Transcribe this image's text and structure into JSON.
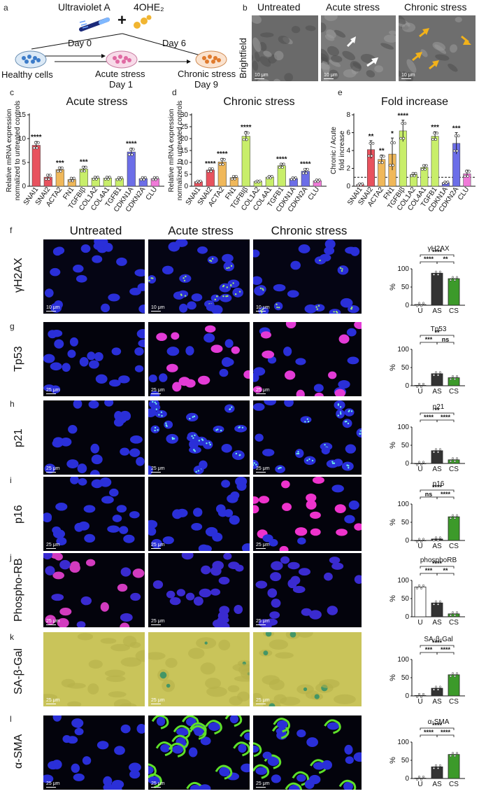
{
  "panel_letters": [
    "a",
    "b",
    "c",
    "d",
    "e",
    "f",
    "g",
    "h",
    "i",
    "j",
    "k",
    "l"
  ],
  "schematic": {
    "agent1": "Ultraviolet A",
    "plus": "+",
    "agent2": "4OHE₂",
    "day0": "Day 0",
    "day6": "Day 6",
    "healthy": "Healthy cells",
    "acute": "Acute stress",
    "acute_day": "Day 1",
    "chronic": "Chronic stress",
    "chronic_day": "Day 9"
  },
  "brightfield": {
    "row_label": "Brightfield",
    "cols": [
      "Untreated",
      "Acute stress",
      "Chronic stress"
    ],
    "scale": "10 μm"
  },
  "columns": [
    "Untreated",
    "Acute stress",
    "Chronic stress"
  ],
  "rows": [
    {
      "label": "γH2AX",
      "scale": "10 μm",
      "bg": "#050514",
      "nuc": "#2a2fd8",
      "hi": "#9fe870"
    },
    {
      "label": "Tp53",
      "scale": "25 μm",
      "bg": "#03030c",
      "nuc": "#2a2fd8",
      "hi": "#e33bd6"
    },
    {
      "label": "p21",
      "scale": "25 μm",
      "bg": "#03030c",
      "nuc": "#2a2fd8",
      "hi": "#6ff0e8"
    },
    {
      "label": "p16",
      "scale": "25 μm",
      "bg": "#03030c",
      "nuc": "#2a2fd8",
      "hi": "#ee33cc"
    },
    {
      "label": "Phospho-RB",
      "scale": "25 μm",
      "bg": "#03030c",
      "nuc": "#3a2bd0",
      "hi": "#d23bbf"
    },
    {
      "label": "SA-β-Gal",
      "scale": "25 μm",
      "bg": "#c9c45a",
      "nuc": "#b5b04a",
      "hi": "#2f8f6a"
    },
    {
      "label": "α-SMA",
      "scale": "25 μm",
      "bg": "#03030c",
      "nuc": "#2a2fd8",
      "hi": "#5ee02a"
    }
  ],
  "chart_data": [
    {
      "type": "bar",
      "title": "Acute stress",
      "ylabel": "Relative mRNA expression normalized to untreated controls",
      "ylim": [
        0,
        15
      ],
      "yticks": [
        0,
        5,
        10,
        15
      ],
      "categories": [
        "SNAI1",
        "SNAI2",
        "ACTA2",
        "FN1",
        "TGFBIβ",
        "COL1A2",
        "COL4A1",
        "TGFB1",
        "CDKN1A",
        "CDKN2A",
        "CLU"
      ],
      "values": [
        8.6,
        1.9,
        3.5,
        1.4,
        3.6,
        1.7,
        1.7,
        1.6,
        7.2,
        1.6,
        1.6
      ],
      "errors": [
        0.8,
        0.6,
        0.5,
        0.4,
        0.6,
        0.3,
        0.3,
        0.3,
        0.8,
        0.3,
        0.3
      ],
      "significance": [
        "****",
        "",
        "***",
        "",
        "***",
        "",
        "",
        "",
        "****",
        "",
        ""
      ],
      "colors": [
        "#e8525e",
        "#e8525e",
        "#f0b85a",
        "#f0b85a",
        "#c8ee6a",
        "#c8ee6a",
        "#c8ee6a",
        "#c8ee6a",
        "#6c6ee8",
        "#6c6ee8",
        "#f07ad8"
      ]
    },
    {
      "type": "bar",
      "title": "Chronic stress",
      "ylabel": "Relative mRNA expression normalized to untreated controls",
      "ylim": [
        0,
        30
      ],
      "yticks": [
        0,
        5,
        10,
        15,
        20,
        25,
        30
      ],
      "categories": [
        "SNAI1",
        "SNAI2",
        "ACTA2",
        "FN1",
        "TGFBIβ",
        "COL1A2",
        "COL4A1",
        "TGFB1",
        "CDKN1A",
        "CDKN2A",
        "CLU"
      ],
      "values": [
        1.9,
        6.8,
        10.2,
        3.6,
        21.0,
        2.0,
        3.8,
        8.6,
        3.2,
        6.3,
        2.3
      ],
      "errors": [
        0.4,
        0.8,
        1.5,
        0.8,
        2.0,
        0.3,
        0.5,
        1.0,
        0.5,
        1.2,
        0.5
      ],
      "significance": [
        "",
        "****",
        "****",
        "",
        "****",
        "",
        "",
        "****",
        "",
        "****",
        ""
      ],
      "colors": [
        "#e8525e",
        "#e8525e",
        "#f0b85a",
        "#f0b85a",
        "#c8ee6a",
        "#c8ee6a",
        "#c8ee6a",
        "#c8ee6a",
        "#6c6ee8",
        "#6c6ee8",
        "#f07ad8"
      ]
    },
    {
      "type": "bar",
      "title": "Fold increase",
      "ylabel": "Chronic / Acute fold increase",
      "ylim": [
        0,
        8
      ],
      "yticks": [
        0,
        2,
        4,
        6,
        8
      ],
      "reference_line": 1,
      "categories": [
        "SNAI1",
        "SNAI2",
        "ACTA2",
        "FN1",
        "TGFBIβ",
        "COL1A2",
        "COL4A1",
        "TGFB1",
        "CDKN1A",
        "CDKN2A",
        "CLU"
      ],
      "values": [
        0.2,
        4.1,
        3.0,
        3.6,
        6.2,
        1.3,
        2.1,
        5.6,
        0.4,
        4.8,
        1.4
      ],
      "errors": [
        0.1,
        1.0,
        0.5,
        1.8,
        1.2,
        0.2,
        0.3,
        0.5,
        0.1,
        1.2,
        0.4
      ],
      "significance": [
        "",
        "**",
        "**",
        "*",
        "****",
        "",
        "",
        "***",
        "",
        "***",
        ""
      ],
      "colors": [
        "#e8525e",
        "#e8525e",
        "#f0b85a",
        "#f0b85a",
        "#c8ee6a",
        "#c8ee6a",
        "#c8ee6a",
        "#c8ee6a",
        "#6c6ee8",
        "#6c6ee8",
        "#f07ad8"
      ]
    },
    {
      "type": "bar",
      "title": "γH2AX",
      "ylabel": "%",
      "ylim": [
        0,
        100
      ],
      "yticks": [
        0,
        50,
        100
      ],
      "categories": [
        "U",
        "AS",
        "CS"
      ],
      "values": [
        2,
        88,
        73
      ],
      "colors": [
        "#ffffff",
        "#333333",
        "#3c9a2a"
      ],
      "brackets": [
        {
          "from": 0,
          "to": 2,
          "label": "****",
          "level": 2
        },
        {
          "from": 0,
          "to": 1,
          "label": "****",
          "level": 1
        },
        {
          "from": 1,
          "to": 2,
          "label": "**",
          "level": 1
        }
      ]
    },
    {
      "type": "bar",
      "title": "Tp53",
      "ylabel": "%",
      "ylim": [
        0,
        100
      ],
      "yticks": [
        0,
        50,
        100
      ],
      "categories": [
        "U",
        "AS",
        "CS"
      ],
      "values": [
        1,
        33,
        22
      ],
      "colors": [
        "#ffffff",
        "#333333",
        "#3c9a2a"
      ],
      "brackets": [
        {
          "from": 0,
          "to": 2,
          "label": "**",
          "level": 2
        },
        {
          "from": 0,
          "to": 1,
          "label": "***",
          "level": 1
        },
        {
          "from": 1,
          "to": 2,
          "label": "ns",
          "level": 1
        }
      ]
    },
    {
      "type": "bar",
      "title": "p21",
      "ylabel": "%",
      "ylim": [
        0,
        100
      ],
      "yticks": [
        0,
        50,
        100
      ],
      "categories": [
        "U",
        "AS",
        "CS"
      ],
      "values": [
        0,
        35,
        10
      ],
      "colors": [
        "#ffffff",
        "#333333",
        "#3c9a2a"
      ],
      "brackets": [
        {
          "from": 0,
          "to": 2,
          "label": "**",
          "level": 2
        },
        {
          "from": 0,
          "to": 1,
          "label": "****",
          "level": 1
        },
        {
          "from": 1,
          "to": 2,
          "label": "****",
          "level": 1
        }
      ]
    },
    {
      "type": "bar",
      "title": "p16",
      "ylabel": "%",
      "ylim": [
        0,
        100
      ],
      "yticks": [
        0,
        50,
        100
      ],
      "categories": [
        "U",
        "AS",
        "CS"
      ],
      "values": [
        0,
        4,
        65
      ],
      "colors": [
        "#ffffff",
        "#333333",
        "#3c9a2a"
      ],
      "brackets": [
        {
          "from": 0,
          "to": 2,
          "label": "****",
          "level": 2
        },
        {
          "from": 0,
          "to": 1,
          "label": "ns",
          "level": 1
        },
        {
          "from": 1,
          "to": 2,
          "label": "****",
          "level": 1
        }
      ]
    },
    {
      "type": "bar",
      "title": "phosphoRB",
      "ylabel": "%",
      "ylim": [
        0,
        100
      ],
      "yticks": [
        0,
        50,
        100
      ],
      "categories": [
        "U",
        "AS",
        "CS"
      ],
      "values": [
        82,
        38,
        8
      ],
      "colors": [
        "#ffffff",
        "#333333",
        "#3c9a2a"
      ],
      "brackets": [
        {
          "from": 0,
          "to": 2,
          "label": "****",
          "level": 2
        },
        {
          "from": 0,
          "to": 1,
          "label": "***",
          "level": 1
        },
        {
          "from": 1,
          "to": 2,
          "label": "**",
          "level": 1
        }
      ]
    },
    {
      "type": "bar",
      "title": "SA-β-Gal",
      "ylabel": "%",
      "ylim": [
        0,
        100
      ],
      "yticks": [
        0,
        50,
        100
      ],
      "categories": [
        "U",
        "AS",
        "CS"
      ],
      "values": [
        1,
        21,
        58
      ],
      "colors": [
        "#ffffff",
        "#333333",
        "#3c9a2a"
      ],
      "brackets": [
        {
          "from": 0,
          "to": 2,
          "label": "****",
          "level": 2
        },
        {
          "from": 0,
          "to": 1,
          "label": "***",
          "level": 1
        },
        {
          "from": 1,
          "to": 2,
          "label": "****",
          "level": 1
        }
      ]
    },
    {
      "type": "bar",
      "title": "α-SMA",
      "ylabel": "%",
      "ylim": [
        0,
        100
      ],
      "yticks": [
        0,
        50,
        100
      ],
      "categories": [
        "U",
        "AS",
        "CS"
      ],
      "values": [
        1,
        32,
        66
      ],
      "colors": [
        "#ffffff",
        "#333333",
        "#3c9a2a"
      ],
      "brackets": [
        {
          "from": 0,
          "to": 2,
          "label": "****",
          "level": 2
        },
        {
          "from": 0,
          "to": 1,
          "label": "****",
          "level": 1
        },
        {
          "from": 1,
          "to": 2,
          "label": "****",
          "level": 1
        }
      ]
    }
  ]
}
